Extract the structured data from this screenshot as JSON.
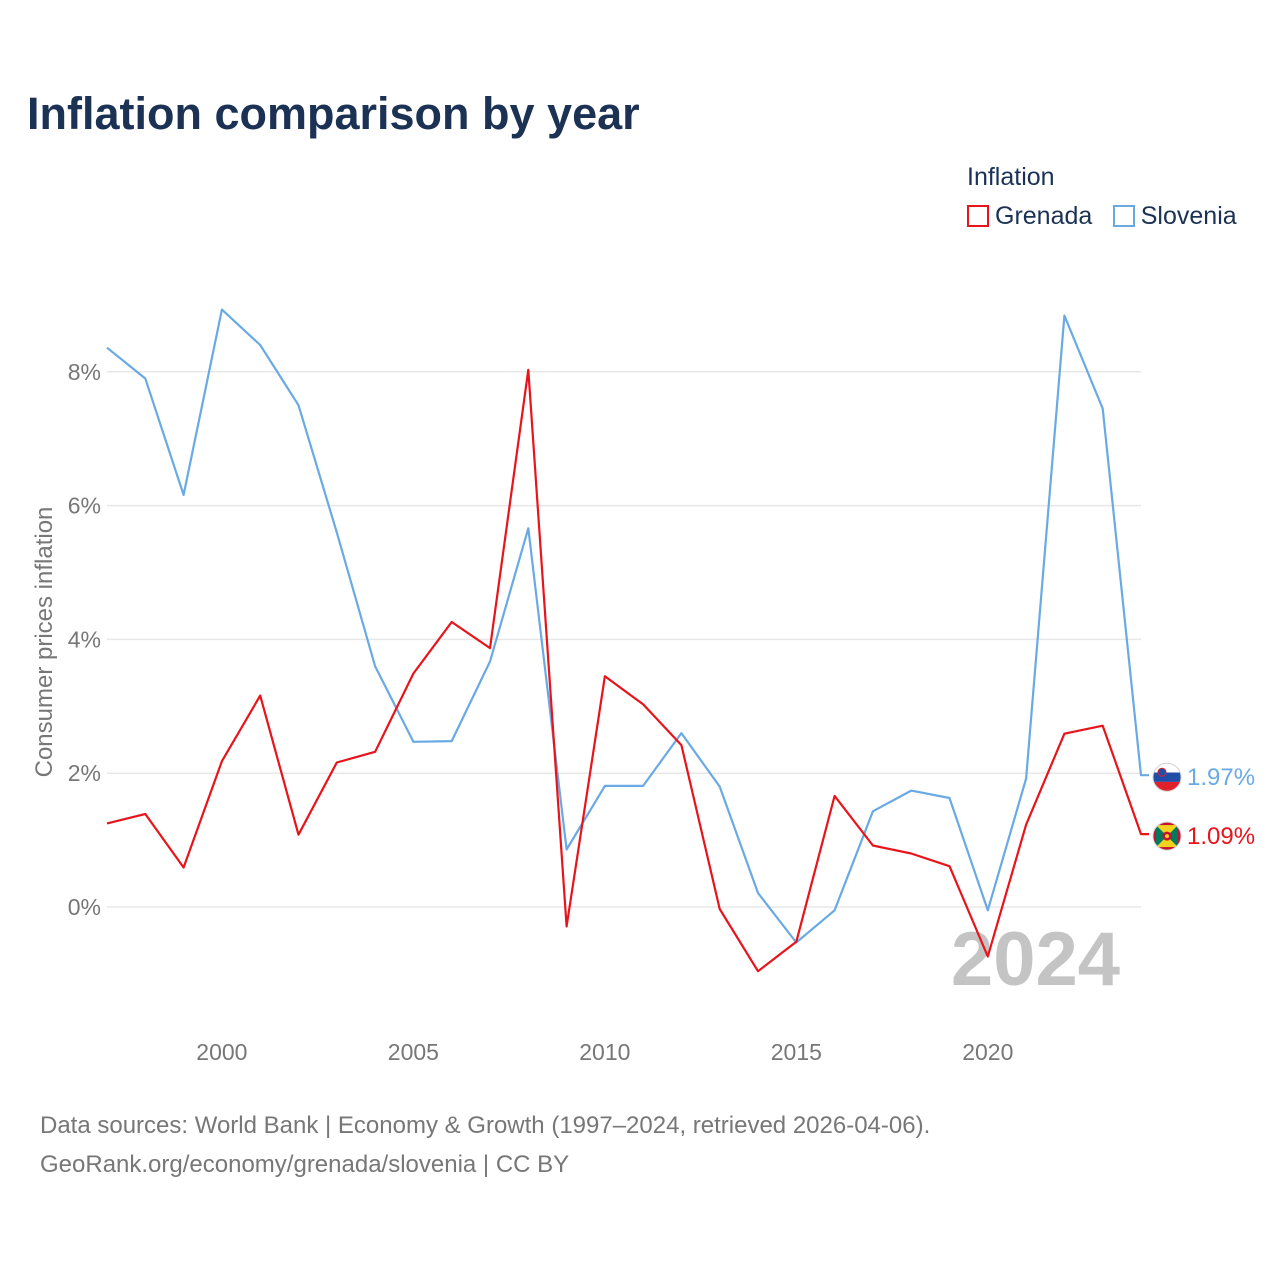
{
  "title": "Inflation comparison by year",
  "legend": {
    "title": "Inflation",
    "items": [
      {
        "name": "Grenada",
        "color": "#e8141b"
      },
      {
        "name": "Slovenia",
        "color": "#6aaae4"
      }
    ]
  },
  "chart_data": {
    "type": "line",
    "title": "Inflation comparison by year",
    "xlabel": "",
    "ylabel": "Consumer prices inflation",
    "xlim": [
      1997,
      2024
    ],
    "ylim": [
      -1.5,
      9.5
    ],
    "x_ticks": [
      2000,
      2005,
      2010,
      2015,
      2020
    ],
    "y_ticks": [
      0,
      2,
      4,
      6,
      8
    ],
    "y_tick_labels": [
      "0%",
      "2%",
      "4%",
      "6%",
      "8%"
    ],
    "grid": true,
    "legend_position": "top-right",
    "year_label": "2024",
    "x": [
      1997,
      1998,
      1999,
      2000,
      2001,
      2002,
      2003,
      2004,
      2005,
      2006,
      2007,
      2008,
      2009,
      2010,
      2011,
      2012,
      2013,
      2014,
      2015,
      2016,
      2017,
      2018,
      2019,
      2020,
      2021,
      2022,
      2023,
      2024
    ],
    "series": [
      {
        "name": "Grenada",
        "color": "#e8141b",
        "end_label": "1.09%",
        "values": [
          1.25,
          1.39,
          0.59,
          2.18,
          3.16,
          1.08,
          2.16,
          2.32,
          3.49,
          4.26,
          3.87,
          8.03,
          -0.29,
          3.45,
          3.03,
          2.42,
          -0.03,
          -0.96,
          -0.52,
          1.66,
          0.92,
          0.8,
          0.61,
          -0.74,
          1.23,
          2.59,
          2.71,
          1.09
        ]
      },
      {
        "name": "Slovenia",
        "color": "#6aaae4",
        "end_label": "1.97%",
        "values": [
          8.36,
          7.9,
          6.16,
          8.93,
          8.4,
          7.5,
          5.6,
          3.6,
          2.47,
          2.48,
          3.67,
          5.66,
          0.86,
          1.81,
          1.81,
          2.6,
          1.8,
          0.21,
          -0.53,
          -0.05,
          1.43,
          1.74,
          1.63,
          -0.05,
          1.92,
          8.84,
          7.45,
          1.97
        ]
      }
    ]
  },
  "footer": {
    "line1": "Data sources: World Bank | Economy & Growth (1997–2024, retrieved 2026-04-06).",
    "line2": "GeoRank.org/economy/grenada/slovenia | CC BY"
  }
}
